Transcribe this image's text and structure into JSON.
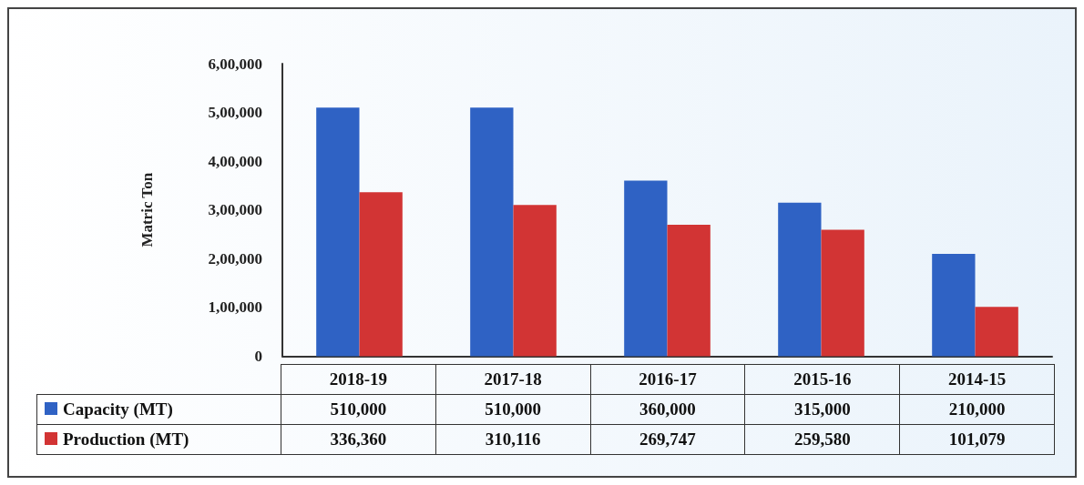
{
  "chart_data": {
    "type": "bar",
    "ylabel": "Matric Ton",
    "categories": [
      "2018-19",
      "2017-18",
      "2016-17",
      "2015-16",
      "2014-15"
    ],
    "series": [
      {
        "name": "Capacity (MT)",
        "color": "#2f62c4",
        "values": [
          510000,
          510000,
          360000,
          315000,
          210000
        ],
        "value_labels": [
          "510,000",
          "510,000",
          "360,000",
          "315,000",
          "210,000"
        ]
      },
      {
        "name": "Production (MT)",
        "color": "#d23434",
        "values": [
          336360,
          310116,
          269747,
          259580,
          101079
        ],
        "value_labels": [
          "336,360",
          "310,116",
          "269,747",
          "259,580",
          "101,079"
        ]
      }
    ],
    "ylim": [
      0,
      600000
    ],
    "yticks": [
      0,
      {
        "value": 100000,
        "label": "1,00,000"
      },
      {
        "value": 200000,
        "label": "2,00,000"
      },
      {
        "value": 300000,
        "label": "3,00,000"
      },
      {
        "value": 400000,
        "label": "4,00,000"
      },
      {
        "value": 500000,
        "label": "5,00,000"
      },
      {
        "value": 600000,
        "label": "6,00,000"
      }
    ],
    "grid": false,
    "legend": "bottom"
  }
}
